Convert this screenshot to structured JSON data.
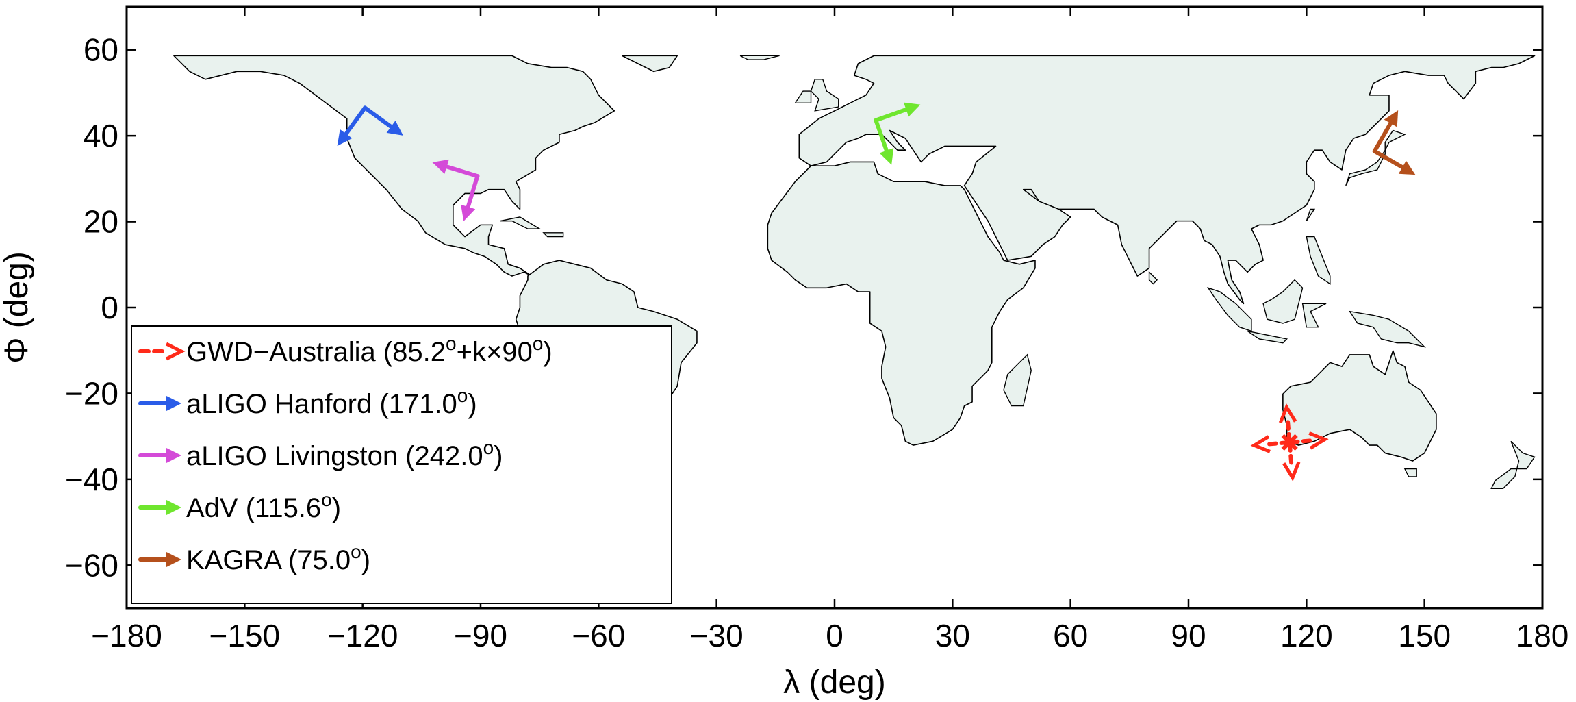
{
  "map": {
    "xlabel": "λ (deg)",
    "ylabel": "Φ (deg)",
    "xlim": [
      -180,
      180
    ],
    "ylim": [
      -70,
      70
    ],
    "land_max_lat": 64,
    "x_ticks": [
      -180,
      -150,
      -120,
      -90,
      -60,
      -30,
      0,
      30,
      60,
      90,
      120,
      150,
      180
    ],
    "y_ticks": [
      -60,
      -40,
      -20,
      0,
      20,
      40,
      60
    ],
    "x_tick_labels": [
      "−180",
      "−150",
      "−120",
      "−90",
      "−60",
      "−30",
      "0",
      "30",
      "60",
      "90",
      "120",
      "150",
      "180"
    ],
    "y_tick_labels": [
      "−60",
      "−40",
      "−20",
      "0",
      "20",
      "40",
      "60"
    ],
    "land_color": "#e9f2ee"
  },
  "detectors": [
    {
      "id": "gwd-australia",
      "name": "GWD−Australia",
      "angle_main": "85.2",
      "angle_extra": "+k×90",
      "lon": 115.7,
      "lat": -31.4,
      "color": "#ff2a1a",
      "style": "dashed-cross",
      "arm_deg": 9
    },
    {
      "id": "ligo-hanford",
      "name": "aLIGO Hanford",
      "angle_main": "171.0",
      "lon": -119.4,
      "lat": 46.5,
      "color": "#2a5ce8",
      "arm_deg": 12
    },
    {
      "id": "ligo-livingston",
      "name": "aLIGO Livingston",
      "angle_main": "242.0",
      "lon": -90.8,
      "lat": 30.6,
      "color": "#d44ad8",
      "arm_deg": 12
    },
    {
      "id": "virgo",
      "name": "AdV",
      "angle_main": "115.6",
      "lon": 10.5,
      "lat": 43.6,
      "color": "#6fe62e",
      "arm_deg": 12
    },
    {
      "id": "kagra",
      "name": "KAGRA",
      "angle_main": "75.0",
      "lon": 137.3,
      "lat": 36.4,
      "color": "#b5501c",
      "arm_deg": 12
    }
  ]
}
